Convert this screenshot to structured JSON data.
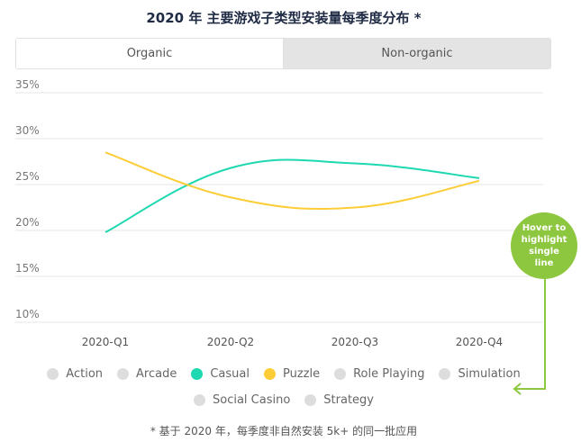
{
  "title": "2020 年 主要游戏子类型安装量每季度分布 *",
  "tabs": [
    {
      "label": "Organic",
      "active": true
    },
    {
      "label": "Non-organic",
      "active": false
    }
  ],
  "callout": {
    "text": "Hover to highlight single line"
  },
  "footnote": "* 基于 2020 年，每季度非自然安装 5k+ 的同一批应用",
  "colors": {
    "casual": "#1dd8b0",
    "puzzle": "#fccd36",
    "inactive": "#dddddd",
    "callout": "#8dc63f"
  },
  "legend": [
    {
      "label": "Action",
      "color": "#dddddd"
    },
    {
      "label": "Arcade",
      "color": "#dddddd"
    },
    {
      "label": "Casual",
      "color": "#1dd8b0"
    },
    {
      "label": "Puzzle",
      "color": "#fccd36"
    },
    {
      "label": "Role Playing",
      "color": "#dddddd"
    },
    {
      "label": "Simulation",
      "color": "#dddddd"
    },
    {
      "label": "Social Casino",
      "color": "#dddddd"
    },
    {
      "label": "Strategy",
      "color": "#dddddd"
    }
  ],
  "chart_data": {
    "type": "line",
    "title": "2020 年 主要游戏子类型安装量每季度分布 *",
    "categories": [
      "2020-Q1",
      "2020-Q2",
      "2020-Q3",
      "2020-Q4"
    ],
    "y_ticks": [
      "35%",
      "30%",
      "25%",
      "20%",
      "15%",
      "10%"
    ],
    "ylim": [
      10,
      35
    ],
    "grid": true,
    "series": [
      {
        "name": "Casual",
        "color": "#1dd8b0",
        "values": [
          19.8,
          26.8,
          27.3,
          25.7
        ]
      },
      {
        "name": "Puzzle",
        "color": "#fccd36",
        "values": [
          28.5,
          23.6,
          22.5,
          25.4
        ]
      }
    ]
  }
}
